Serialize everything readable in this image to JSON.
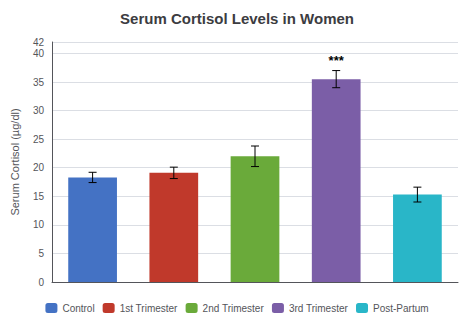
{
  "chart_data": {
    "type": "bar",
    "title": "Serum Cortisol Levels in Women",
    "ylabel": "Serum Cortisol (µg/dl)",
    "categories": [
      "Control",
      "1st Trimester",
      "2nd Trimester",
      "3rd Trimester",
      "Post-Partum"
    ],
    "values": [
      18.3,
      19.1,
      22.0,
      35.5,
      15.3
    ],
    "errors": [
      0.9,
      1.0,
      1.8,
      1.5,
      1.3
    ],
    "colors": [
      "#4472C4",
      "#C0392B",
      "#6AAA3A",
      "#7B5EA7",
      "#29B6C8"
    ],
    "ylim": [
      0,
      42
    ],
    "yticks": [
      0,
      5,
      10,
      15,
      20,
      25,
      30,
      35,
      40
    ],
    "grid": true,
    "legend": "bottom",
    "tick_labels": "y",
    "annotations": [
      {
        "text": "***",
        "category": "3rd Trimester"
      }
    ]
  }
}
